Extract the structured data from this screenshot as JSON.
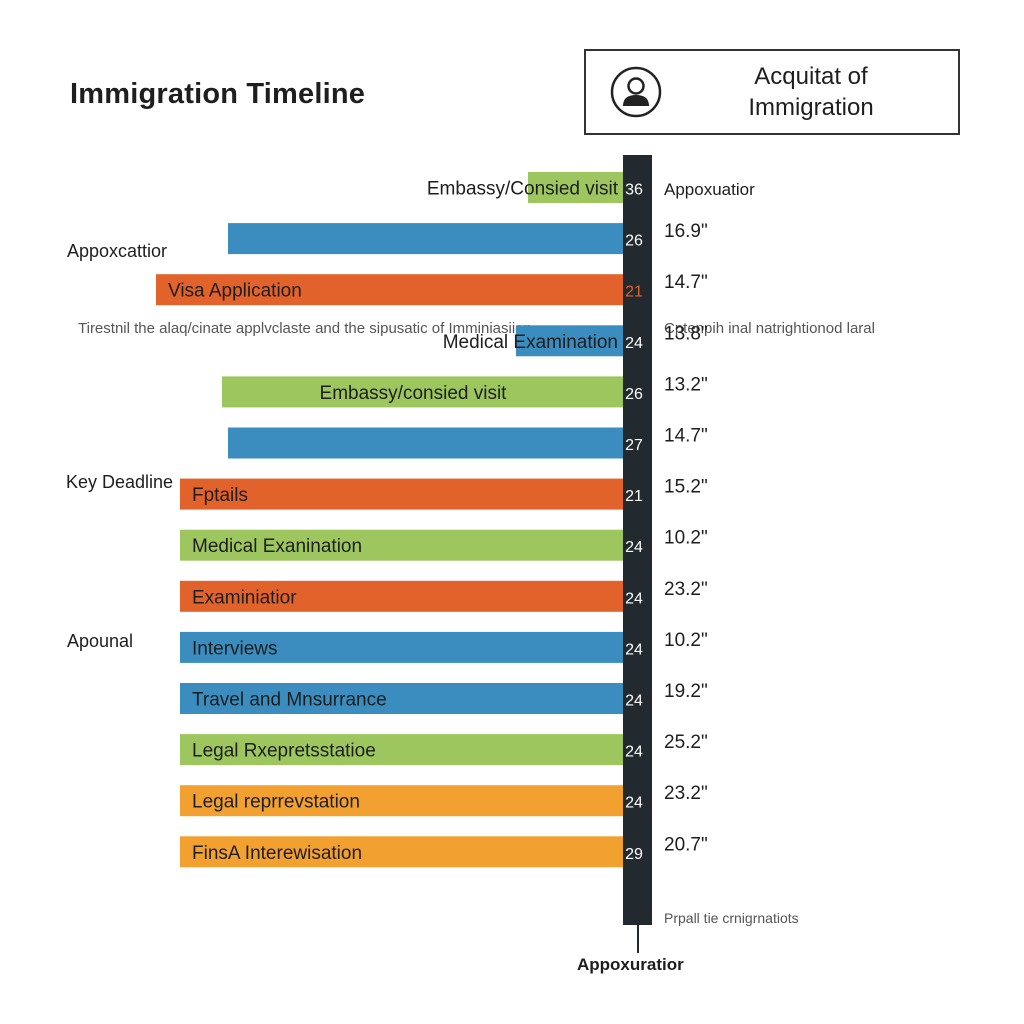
{
  "header": {
    "title": "Immigration Timeline",
    "box_title_line1": "Acquitat of",
    "box_title_line2": "Immigration",
    "icon": "person-icon"
  },
  "side_labels": {
    "left_1": "Appoxcattior",
    "left_2": "Key Deadline",
    "left_3": "Apounal",
    "right_top": "Appoxuatior",
    "axis_bottom": "Appoxuratior"
  },
  "notes": {
    "left": "Tirestnil the alaq/cinate applvclaste and the sipusatic of Imminiasiion",
    "right": "Cptenpih inal natrightionod laral",
    "footnote": "Prpall tie crnigrnatiots"
  },
  "chart_data": {
    "type": "bar",
    "orientation": "horizontal",
    "categories": [
      "Embassy/Consied visit",
      "",
      "Visa Application",
      "Medical Examination",
      "Embassy/consied visit",
      "",
      "Fptails",
      "Medical Exanination",
      "Examiniatior",
      "Interviews",
      "Travel and Mnsurrance",
      "Legal Rxepretsstatioe",
      "Legal reprrevstation",
      "FinsA Interewisation"
    ],
    "axis_numbers": [
      "36",
      "26",
      "21",
      "24",
      "26",
      "27",
      "21",
      "24",
      "24",
      "24",
      "24",
      "24",
      "24",
      "29"
    ],
    "values_labels": [
      "",
      "16.9\"",
      "14.7\"",
      "13.8\"",
      "13.2\"",
      "14.7\"",
      "15.2\"",
      "10.2\"",
      "23.2\"",
      "10.2\"",
      "19.2\"",
      "25.2\"",
      "23.2\"",
      "20.7\""
    ],
    "colors": [
      "#9dc65e",
      "#3a8dbe",
      "#e2622b",
      "#3a8dbe",
      "#9dc65e",
      "#3a8dbe",
      "#e2622b",
      "#9dc65e",
      "#e2622b",
      "#3a8dbe",
      "#3a8dbe",
      "#9dc65e",
      "#f2a131",
      "#f2a131"
    ],
    "relative_lengths": [
      0.16,
      0.66,
      0.78,
      0.18,
      0.67,
      0.66,
      0.74,
      0.74,
      0.74,
      0.74,
      0.74,
      0.74,
      0.74,
      0.74
    ]
  }
}
